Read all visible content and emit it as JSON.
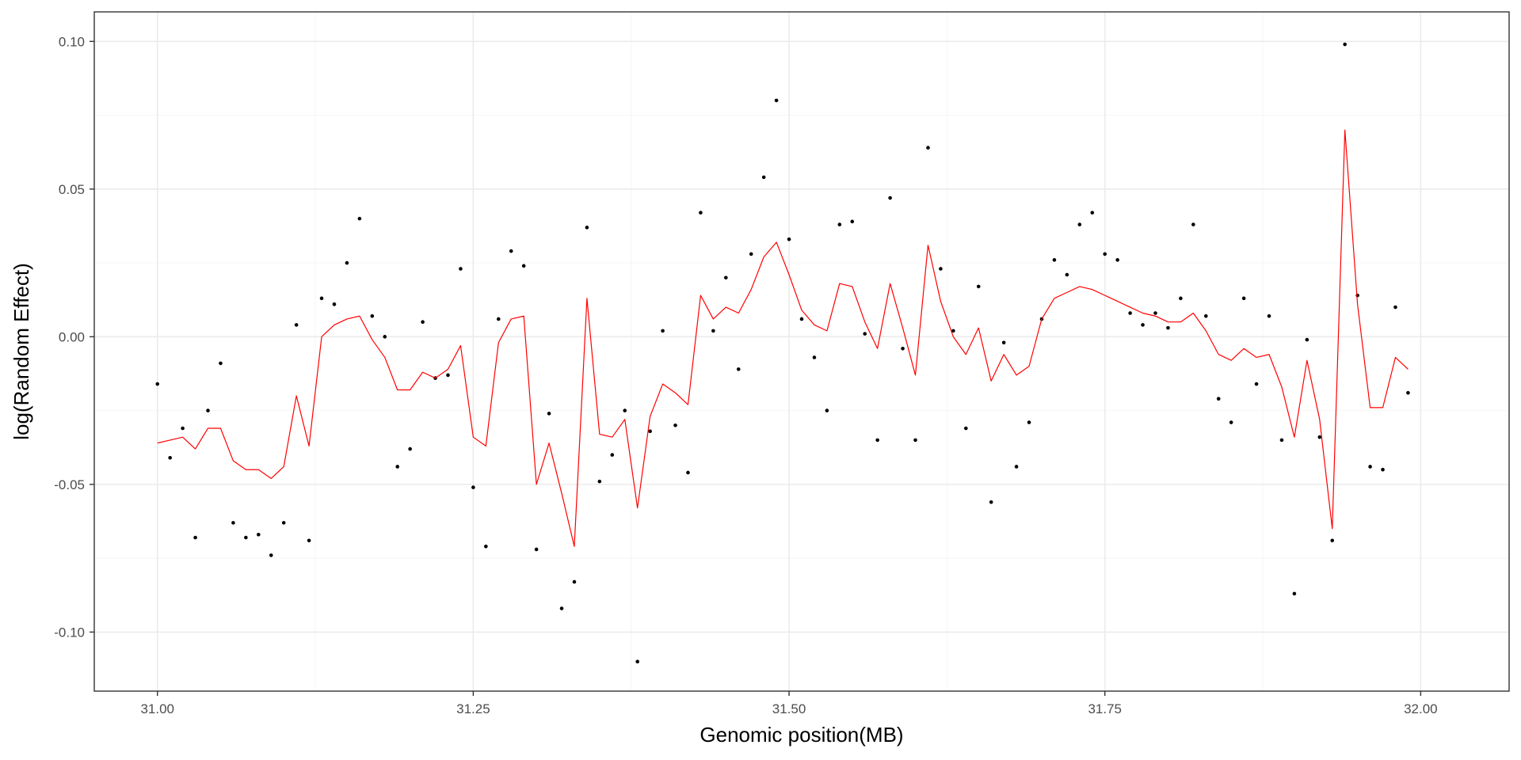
{
  "chart_data": {
    "type": "scatter",
    "title": "",
    "xlabel": "Genomic position(MB)",
    "ylabel": "log(Random Effect)",
    "xlim": [
      30.95,
      32.07
    ],
    "ylim": [
      -0.12,
      0.11
    ],
    "x_ticks": [
      31.0,
      31.25,
      31.5,
      31.75,
      32.0
    ],
    "x_tick_labels": [
      "31.00",
      "31.25",
      "31.50",
      "31.75",
      "32.00"
    ],
    "y_ticks": [
      -0.1,
      -0.05,
      0.0,
      0.05,
      0.1
    ],
    "y_tick_labels": [
      "-0.10",
      "-0.05",
      "0.00",
      "0.05",
      "0.10"
    ],
    "grid": true,
    "theme": "bw",
    "series": [
      {
        "type": "scatter",
        "color": "#000000",
        "x": [
          31.0,
          31.01,
          31.02,
          31.03,
          31.04,
          31.05,
          31.06,
          31.07,
          31.08,
          31.09,
          31.1,
          31.11,
          31.12,
          31.13,
          31.14,
          31.15,
          31.16,
          31.17,
          31.18,
          31.19,
          31.2,
          31.21,
          31.22,
          31.23,
          31.24,
          31.25,
          31.26,
          31.27,
          31.28,
          31.29,
          31.3,
          31.31,
          31.32,
          31.33,
          31.34,
          31.35,
          31.36,
          31.37,
          31.38,
          31.39,
          31.4,
          31.41,
          31.42,
          31.43,
          31.44,
          31.45,
          31.46,
          31.47,
          31.48,
          31.49,
          31.5,
          31.51,
          31.52,
          31.53,
          31.54,
          31.55,
          31.56,
          31.57,
          31.58,
          31.59,
          31.6,
          31.61,
          31.62,
          31.63,
          31.64,
          31.65,
          31.66,
          31.67,
          31.68,
          31.69,
          31.7,
          31.71,
          31.72,
          31.73,
          31.74,
          31.75,
          31.76,
          31.77,
          31.78,
          31.79,
          31.8,
          31.81,
          31.82,
          31.83,
          31.84,
          31.85,
          31.86,
          31.87,
          31.88,
          31.89,
          31.9,
          31.91,
          31.92,
          31.93,
          31.94,
          31.95,
          31.96,
          31.97,
          31.98,
          31.99
        ],
        "y": [
          -0.016,
          -0.041,
          -0.031,
          -0.068,
          -0.025,
          -0.009,
          -0.063,
          -0.068,
          -0.067,
          -0.074,
          -0.063,
          0.004,
          -0.069,
          0.013,
          0.011,
          0.025,
          0.04,
          0.007,
          0.0,
          -0.044,
          -0.038,
          0.005,
          -0.014,
          -0.013,
          0.023,
          -0.051,
          -0.071,
          0.006,
          0.029,
          0.024,
          -0.072,
          -0.026,
          -0.092,
          -0.083,
          0.037,
          -0.049,
          -0.04,
          -0.025,
          -0.11,
          -0.032,
          0.002,
          -0.03,
          -0.046,
          0.042,
          0.002,
          0.02,
          -0.011,
          0.028,
          0.054,
          0.08,
          0.033,
          0.006,
          -0.007,
          -0.025,
          0.038,
          0.039,
          0.001,
          -0.035,
          0.047,
          -0.004,
          -0.035,
          0.064,
          0.023,
          0.002,
          -0.031,
          0.017,
          -0.056,
          -0.002,
          -0.044,
          -0.029,
          0.006,
          0.026,
          0.021,
          0.038,
          0.042,
          0.028,
          0.026,
          0.008,
          0.004,
          0.008,
          0.003,
          0.013,
          0.038,
          0.007,
          -0.021,
          -0.029,
          0.013,
          -0.016,
          0.007,
          -0.035,
          -0.087,
          -0.001,
          -0.034,
          -0.069,
          0.099,
          0.014,
          -0.044,
          -0.045,
          0.01,
          -0.019
        ]
      },
      {
        "type": "line",
        "color": "#ff0000",
        "x": [
          31.0,
          31.01,
          31.02,
          31.03,
          31.04,
          31.05,
          31.06,
          31.07,
          31.08,
          31.09,
          31.1,
          31.11,
          31.12,
          31.13,
          31.14,
          31.15,
          31.16,
          31.17,
          31.18,
          31.19,
          31.2,
          31.21,
          31.22,
          31.23,
          31.24,
          31.25,
          31.26,
          31.27,
          31.28,
          31.29,
          31.3,
          31.31,
          31.32,
          31.33,
          31.34,
          31.35,
          31.36,
          31.37,
          31.38,
          31.39,
          31.4,
          31.41,
          31.42,
          31.43,
          31.44,
          31.45,
          31.46,
          31.47,
          31.48,
          31.49,
          31.5,
          31.51,
          31.52,
          31.53,
          31.54,
          31.55,
          31.56,
          31.57,
          31.58,
          31.59,
          31.6,
          31.61,
          31.62,
          31.63,
          31.64,
          31.65,
          31.66,
          31.67,
          31.68,
          31.69,
          31.7,
          31.71,
          31.72,
          31.73,
          31.74,
          31.75,
          31.76,
          31.77,
          31.78,
          31.79,
          31.8,
          31.81,
          31.82,
          31.83,
          31.84,
          31.85,
          31.86,
          31.87,
          31.88,
          31.89,
          31.9,
          31.91,
          31.92,
          31.93,
          31.94,
          31.95,
          31.96,
          31.97,
          31.98,
          31.99
        ],
        "y": [
          -0.036,
          -0.035,
          -0.034,
          -0.038,
          -0.031,
          -0.031,
          -0.042,
          -0.045,
          -0.045,
          -0.048,
          -0.044,
          -0.02,
          -0.037,
          0.0,
          0.004,
          0.006,
          0.007,
          -0.001,
          -0.007,
          -0.018,
          -0.018,
          -0.012,
          -0.014,
          -0.011,
          -0.003,
          -0.034,
          -0.037,
          -0.002,
          0.006,
          0.007,
          -0.05,
          -0.036,
          -0.053,
          -0.071,
          0.013,
          -0.033,
          -0.034,
          -0.028,
          -0.058,
          -0.027,
          -0.016,
          -0.019,
          -0.023,
          0.014,
          0.006,
          0.01,
          0.008,
          0.016,
          0.027,
          0.032,
          0.021,
          0.009,
          0.004,
          0.002,
          0.018,
          0.017,
          0.005,
          -0.004,
          0.018,
          0.003,
          -0.013,
          0.031,
          0.012,
          0.0,
          -0.006,
          0.003,
          -0.015,
          -0.006,
          -0.013,
          -0.01,
          0.006,
          0.013,
          0.015,
          0.017,
          0.016,
          0.014,
          0.012,
          0.01,
          0.008,
          0.007,
          0.005,
          0.005,
          0.008,
          0.002,
          -0.006,
          -0.008,
          -0.004,
          -0.007,
          -0.006,
          -0.017,
          -0.034,
          -0.008,
          -0.028,
          -0.065,
          0.07,
          0.011,
          -0.024,
          -0.024,
          -0.007,
          -0.011
        ]
      }
    ]
  }
}
